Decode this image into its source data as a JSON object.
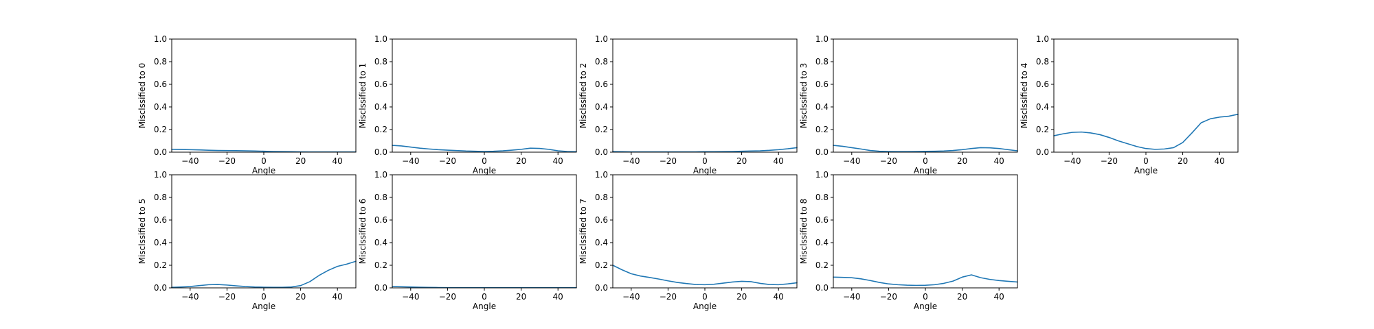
{
  "colors": {
    "series": "#1f77b4",
    "axis": "#000000",
    "background": "#ffffff"
  },
  "chart_data": [
    {
      "type": "line",
      "xlabel": "Angle",
      "ylabel": "Misclssified to 0",
      "xlim": [
        -50,
        50
      ],
      "ylim": [
        0,
        1
      ],
      "xticks": [
        -40,
        -20,
        0,
        20,
        40
      ],
      "xtick_labels": [
        "−40",
        "−20",
        "0",
        "20",
        "40"
      ],
      "yticks": [
        0,
        0.2,
        0.4,
        0.6,
        0.8,
        1.0
      ],
      "ytick_labels": [
        "0.0",
        "0.2",
        "0.4",
        "0.6",
        "0.8",
        "1.0"
      ],
      "grid": false,
      "series": [
        {
          "x": [
            -50,
            -45,
            -40,
            -35,
            -30,
            -25,
            -20,
            -15,
            -10,
            -5,
            0,
            5,
            10,
            15,
            20,
            25,
            30,
            35,
            40,
            45,
            50
          ],
          "y": [
            0.025,
            0.024,
            0.022,
            0.02,
            0.017,
            0.015,
            0.014,
            0.013,
            0.012,
            0.01,
            0.008,
            0.006,
            0.005,
            0.004,
            0.003,
            0.002,
            0.002,
            0.002,
            0.002,
            0.002,
            0.002
          ]
        }
      ]
    },
    {
      "type": "line",
      "xlabel": "Angle",
      "ylabel": "Misclssified to 1",
      "xlim": [
        -50,
        50
      ],
      "ylim": [
        0,
        1
      ],
      "xticks": [
        -40,
        -20,
        0,
        20,
        40
      ],
      "xtick_labels": [
        "−40",
        "−20",
        "0",
        "20",
        "40"
      ],
      "yticks": [
        0,
        0.2,
        0.4,
        0.6,
        0.8,
        1.0
      ],
      "ytick_labels": [
        "0.0",
        "0.2",
        "0.4",
        "0.6",
        "0.8",
        "1.0"
      ],
      "grid": false,
      "series": [
        {
          "x": [
            -50,
            -45,
            -40,
            -35,
            -30,
            -25,
            -20,
            -15,
            -10,
            -5,
            0,
            5,
            10,
            15,
            20,
            25,
            30,
            35,
            40,
            45,
            50
          ],
          "y": [
            0.06,
            0.055,
            0.045,
            0.035,
            0.028,
            0.022,
            0.018,
            0.014,
            0.01,
            0.008,
            0.006,
            0.008,
            0.012,
            0.018,
            0.025,
            0.035,
            0.033,
            0.025,
            0.012,
            0.006,
            0.004
          ]
        }
      ]
    },
    {
      "type": "line",
      "xlabel": "Angle",
      "ylabel": "Misclssified to 2",
      "xlim": [
        -50,
        50
      ],
      "ylim": [
        0,
        1
      ],
      "xticks": [
        -40,
        -20,
        0,
        20,
        40
      ],
      "xtick_labels": [
        "−40",
        "−20",
        "0",
        "20",
        "40"
      ],
      "yticks": [
        0,
        0.2,
        0.4,
        0.6,
        0.8,
        1.0
      ],
      "ytick_labels": [
        "0.0",
        "0.2",
        "0.4",
        "0.6",
        "0.8",
        "1.0"
      ],
      "grid": false,
      "series": [
        {
          "x": [
            -50,
            -45,
            -40,
            -35,
            -30,
            -25,
            -20,
            -15,
            -10,
            -5,
            0,
            5,
            10,
            15,
            20,
            25,
            30,
            35,
            40,
            45,
            50
          ],
          "y": [
            0.005,
            0.004,
            0.003,
            0.003,
            0.003,
            0.003,
            0.003,
            0.003,
            0.003,
            0.003,
            0.004,
            0.004,
            0.005,
            0.006,
            0.008,
            0.01,
            0.012,
            0.016,
            0.022,
            0.03,
            0.04
          ]
        }
      ]
    },
    {
      "type": "line",
      "xlabel": "Angle",
      "ylabel": "Misclssified to 3",
      "xlim": [
        -50,
        50
      ],
      "ylim": [
        0,
        1
      ],
      "xticks": [
        -40,
        -20,
        0,
        20,
        40
      ],
      "xtick_labels": [
        "−40",
        "−20",
        "0",
        "20",
        "40"
      ],
      "yticks": [
        0,
        0.2,
        0.4,
        0.6,
        0.8,
        1.0
      ],
      "ytick_labels": [
        "0.0",
        "0.2",
        "0.4",
        "0.6",
        "0.8",
        "1.0"
      ],
      "grid": false,
      "series": [
        {
          "x": [
            -50,
            -45,
            -40,
            -35,
            -30,
            -25,
            -20,
            -15,
            -10,
            -5,
            0,
            5,
            10,
            15,
            20,
            25,
            30,
            35,
            40,
            45,
            50
          ],
          "y": [
            0.06,
            0.052,
            0.04,
            0.028,
            0.015,
            0.008,
            0.006,
            0.005,
            0.005,
            0.006,
            0.007,
            0.008,
            0.01,
            0.015,
            0.022,
            0.032,
            0.04,
            0.038,
            0.032,
            0.022,
            0.012
          ]
        }
      ]
    },
    {
      "type": "line",
      "xlabel": "Angle",
      "ylabel": "Misclssified to 4",
      "xlim": [
        -50,
        50
      ],
      "ylim": [
        0,
        1
      ],
      "xticks": [
        -40,
        -20,
        0,
        20,
        40
      ],
      "xtick_labels": [
        "−40",
        "−20",
        "0",
        "20",
        "40"
      ],
      "yticks": [
        0,
        0.2,
        0.4,
        0.6,
        0.8,
        1.0
      ],
      "ytick_labels": [
        "0.0",
        "0.2",
        "0.4",
        "0.6",
        "0.8",
        "1.0"
      ],
      "grid": false,
      "series": [
        {
          "x": [
            -50,
            -45,
            -40,
            -35,
            -30,
            -25,
            -20,
            -15,
            -10,
            -5,
            0,
            5,
            10,
            15,
            20,
            25,
            30,
            35,
            40,
            45,
            50
          ],
          "y": [
            0.145,
            0.162,
            0.175,
            0.178,
            0.17,
            0.155,
            0.13,
            0.1,
            0.075,
            0.05,
            0.032,
            0.025,
            0.028,
            0.04,
            0.085,
            0.17,
            0.26,
            0.295,
            0.31,
            0.318,
            0.335
          ]
        }
      ]
    },
    {
      "type": "line",
      "xlabel": "Angle",
      "ylabel": "Misclssified to 5",
      "xlim": [
        -50,
        50
      ],
      "ylim": [
        0,
        1
      ],
      "xticks": [
        -40,
        -20,
        0,
        20,
        40
      ],
      "xtick_labels": [
        "−40",
        "−20",
        "0",
        "20",
        "40"
      ],
      "yticks": [
        0,
        0.2,
        0.4,
        0.6,
        0.8,
        1.0
      ],
      "ytick_labels": [
        "0.0",
        "0.2",
        "0.4",
        "0.6",
        "0.8",
        "1.0"
      ],
      "grid": false,
      "series": [
        {
          "x": [
            -50,
            -45,
            -40,
            -35,
            -30,
            -25,
            -20,
            -15,
            -10,
            -5,
            0,
            5,
            10,
            15,
            20,
            25,
            30,
            35,
            40,
            45,
            50
          ],
          "y": [
            0.005,
            0.008,
            0.012,
            0.02,
            0.028,
            0.03,
            0.025,
            0.018,
            0.012,
            0.008,
            0.006,
            0.005,
            0.005,
            0.008,
            0.02,
            0.055,
            0.11,
            0.155,
            0.19,
            0.21,
            0.235
          ]
        }
      ]
    },
    {
      "type": "line",
      "xlabel": "Angle",
      "ylabel": "Misclssified to 6",
      "xlim": [
        -50,
        50
      ],
      "ylim": [
        0,
        1
      ],
      "xticks": [
        -40,
        -20,
        0,
        20,
        40
      ],
      "xtick_labels": [
        "−40",
        "−20",
        "0",
        "20",
        "40"
      ],
      "yticks": [
        0,
        0.2,
        0.4,
        0.6,
        0.8,
        1.0
      ],
      "ytick_labels": [
        "0.0",
        "0.2",
        "0.4",
        "0.6",
        "0.8",
        "1.0"
      ],
      "grid": false,
      "series": [
        {
          "x": [
            -50,
            -45,
            -40,
            -35,
            -30,
            -25,
            -20,
            -15,
            -10,
            -5,
            0,
            5,
            10,
            15,
            20,
            25,
            30,
            35,
            40,
            45,
            50
          ],
          "y": [
            0.012,
            0.01,
            0.008,
            0.006,
            0.004,
            0.003,
            0.002,
            0.002,
            0.002,
            0.002,
            0.002,
            0.002,
            0.002,
            0.002,
            0.002,
            0.002,
            0.002,
            0.002,
            0.002,
            0.002,
            0.002
          ]
        }
      ]
    },
    {
      "type": "line",
      "xlabel": "Angle",
      "ylabel": "Misclssified to 7",
      "xlim": [
        -50,
        50
      ],
      "ylim": [
        0,
        1
      ],
      "xticks": [
        -40,
        -20,
        0,
        20,
        40
      ],
      "xtick_labels": [
        "−40",
        "−20",
        "0",
        "20",
        "40"
      ],
      "yticks": [
        0,
        0.2,
        0.4,
        0.6,
        0.8,
        1.0
      ],
      "ytick_labels": [
        "0.0",
        "0.2",
        "0.4",
        "0.6",
        "0.8",
        "1.0"
      ],
      "grid": false,
      "series": [
        {
          "x": [
            -50,
            -45,
            -40,
            -35,
            -30,
            -25,
            -20,
            -15,
            -10,
            -5,
            0,
            5,
            10,
            15,
            20,
            25,
            30,
            35,
            40,
            45,
            50
          ],
          "y": [
            0.2,
            0.16,
            0.125,
            0.105,
            0.092,
            0.078,
            0.062,
            0.048,
            0.038,
            0.03,
            0.028,
            0.032,
            0.042,
            0.052,
            0.058,
            0.055,
            0.04,
            0.03,
            0.028,
            0.035,
            0.045
          ]
        }
      ]
    },
    {
      "type": "line",
      "xlabel": "Angle",
      "ylabel": "Misclssified to 8",
      "xlim": [
        -50,
        50
      ],
      "ylim": [
        0,
        1
      ],
      "xticks": [
        -40,
        -20,
        0,
        20,
        40
      ],
      "xtick_labels": [
        "−40",
        "−20",
        "0",
        "20",
        "40"
      ],
      "yticks": [
        0,
        0.2,
        0.4,
        0.6,
        0.8,
        1.0
      ],
      "ytick_labels": [
        "0.0",
        "0.2",
        "0.4",
        "0.6",
        "0.8",
        "1.0"
      ],
      "grid": false,
      "series": [
        {
          "x": [
            -50,
            -45,
            -40,
            -35,
            -30,
            -25,
            -20,
            -15,
            -10,
            -5,
            0,
            5,
            10,
            15,
            20,
            25,
            30,
            35,
            40,
            45,
            50
          ],
          "y": [
            0.095,
            0.093,
            0.09,
            0.08,
            0.065,
            0.048,
            0.035,
            0.028,
            0.024,
            0.022,
            0.023,
            0.028,
            0.04,
            0.06,
            0.095,
            0.115,
            0.09,
            0.075,
            0.065,
            0.058,
            0.052
          ]
        }
      ]
    }
  ]
}
